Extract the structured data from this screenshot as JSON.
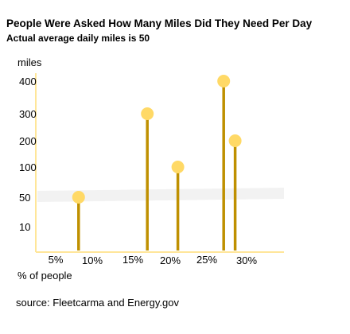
{
  "title": "People Were Asked How Many Miles Did They Need Per Day",
  "subtitle": "Actual average daily miles is 50",
  "source": "source:  Fleetcarma and Energy.gov",
  "colors": {
    "stem": "#bf9000",
    "marker": "#ffd966",
    "axis": "#ffe699",
    "band": "#f2f2f2"
  },
  "chart_data": {
    "type": "lollipop",
    "xlabel": "% of people",
    "ylabel": "miles",
    "x_ticks": [
      "5%",
      "10%",
      "15%",
      "20%",
      "25%",
      "30%"
    ],
    "y_ticks": [
      "10",
      "50",
      "100",
      "200",
      "300",
      "400"
    ],
    "reference_band_value": 50,
    "points": [
      {
        "x": 8,
        "y": 50
      },
      {
        "x": 17,
        "y": 300
      },
      {
        "x": 21,
        "y": 100
      },
      {
        "x": 27,
        "y": 400
      },
      {
        "x": 28.5,
        "y": 200
      }
    ]
  }
}
